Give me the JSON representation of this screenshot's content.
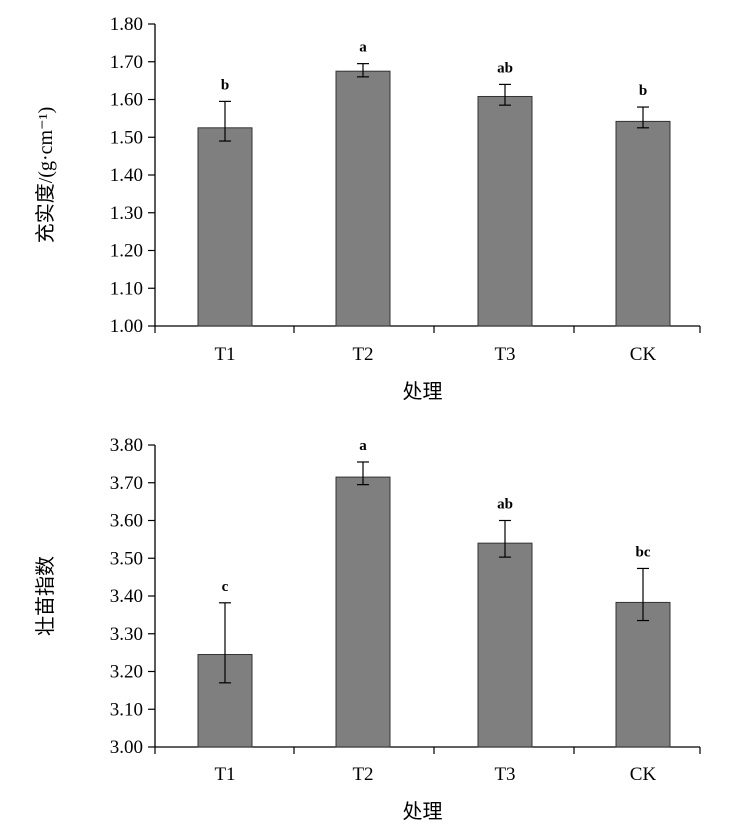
{
  "chart_data": [
    {
      "type": "bar",
      "categories": [
        "T1",
        "T2",
        "T3",
        "CK"
      ],
      "values": [
        1.525,
        1.675,
        1.608,
        1.542
      ],
      "error": [
        [
          1.49,
          1.595
        ],
        [
          1.66,
          1.695
        ],
        [
          1.585,
          1.64
        ],
        [
          1.525,
          1.58
        ]
      ],
      "labels": [
        "b",
        "a",
        "ab",
        "b"
      ],
      "ylabel": "充实度/(g·cm⁻¹)",
      "xlabel": "处理",
      "ylim": [
        1.0,
        1.8
      ],
      "ticks": [
        "1.00",
        "1.10",
        "1.20",
        "1.30",
        "1.40",
        "1.50",
        "1.60",
        "1.70",
        "1.80"
      ],
      "bar_color": "#7f7f7f",
      "grid": false
    },
    {
      "type": "bar",
      "categories": [
        "T1",
        "T2",
        "T3",
        "CK"
      ],
      "values": [
        3.245,
        3.715,
        3.54,
        3.383
      ],
      "error": [
        [
          3.17,
          3.382
        ],
        [
          3.695,
          3.755
        ],
        [
          3.503,
          3.6
        ],
        [
          3.335,
          3.473
        ]
      ],
      "labels": [
        "c",
        "a",
        "ab",
        "bc"
      ],
      "ylabel": "壮苗指数",
      "xlabel": "处理",
      "ylim": [
        3.0,
        3.8
      ],
      "ticks": [
        "3.00",
        "3.10",
        "3.20",
        "3.30",
        "3.40",
        "3.50",
        "3.60",
        "3.70",
        "3.80"
      ],
      "bar_color": "#7f7f7f",
      "grid": false
    }
  ]
}
